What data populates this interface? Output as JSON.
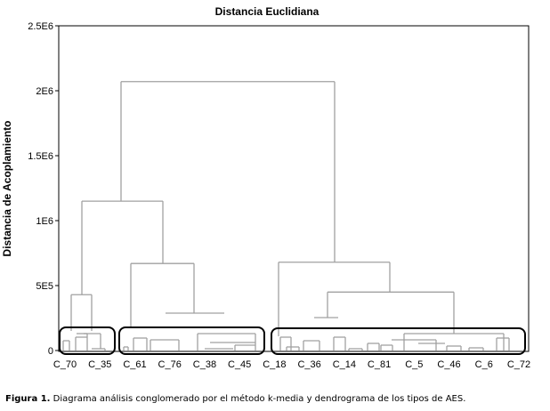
{
  "chart_data": {
    "type": "dendrogram",
    "title": "Distancia Euclidiana",
    "xlabel": "",
    "ylabel": "Distancia de Acoplamiento",
    "ylim": [
      0,
      2500000
    ],
    "yticks": [
      0,
      500000,
      1000000,
      1500000,
      2000000,
      2500000
    ],
    "ytick_labels": [
      "0",
      "5E5",
      "1E6",
      "1.5E6",
      "2E6",
      "2.5E6"
    ],
    "categories": [
      "C_70",
      "C_35",
      "C_61",
      "C_76",
      "C_38",
      "C_45",
      "C_18",
      "C_36",
      "C_14",
      "C_81",
      "C_5",
      "C_46",
      "C_6",
      "C_72"
    ],
    "merges": [
      {
        "between": [
          "C_70",
          "C_35"
        ],
        "height": 430000
      },
      {
        "between": [
          "C_61",
          "C_45"
        ],
        "height": 670000
      },
      {
        "between": [
          "C_70-C_35",
          "C_61-C_45"
        ],
        "height": 1150000
      },
      {
        "between": [
          "C_36",
          "C_72"
        ],
        "height": 450000
      },
      {
        "between": [
          "C_18",
          "C_36-C_72"
        ],
        "height": 680000
      },
      {
        "between": [
          "left",
          "right"
        ],
        "height": 2070000
      }
    ],
    "highlighted_clusters": [
      {
        "from": "C_70",
        "to": "C_35"
      },
      {
        "from": "C_61",
        "to": "C_45"
      },
      {
        "from": "C_18",
        "to": "C_72"
      }
    ]
  },
  "caption": {
    "label": "Figura 1.",
    "text": "Diagrama análisis conglomerado por el método k-media y dendrograma de los tipos de AES."
  }
}
